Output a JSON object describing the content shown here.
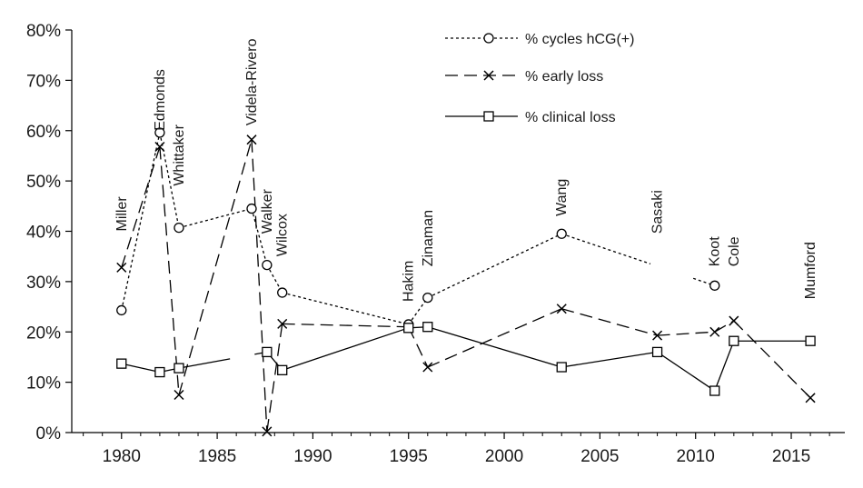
{
  "chart_data": {
    "type": "line",
    "xlim": [
      1977.4,
      2017.8
    ],
    "ylim": [
      0,
      0.8
    ],
    "x_ticks": [
      1980,
      1985,
      1990,
      1995,
      2000,
      2005,
      2010,
      2015
    ],
    "y_ticks": [
      0,
      0.1,
      0.2,
      0.3,
      0.4,
      0.5,
      0.6,
      0.7,
      0.8
    ],
    "y_tick_labels": [
      "0%",
      "10%",
      "20%",
      "30%",
      "40%",
      "50%",
      "60%",
      "70%",
      "80%"
    ],
    "grid": false,
    "legend_position": "top-right",
    "series": [
      {
        "name": "% cycles hCG(+)",
        "style": "dotted",
        "marker": "circle",
        "color": "#000000",
        "points": [
          {
            "x": 1980,
            "y": 0.243
          },
          {
            "x": 1982,
            "y": 0.596
          },
          {
            "x": 1983,
            "y": 0.407
          },
          {
            "x": 1986.8,
            "y": 0.445
          },
          {
            "x": 1987.6,
            "y": 0.333
          },
          {
            "x": 1988.4,
            "y": 0.278
          },
          {
            "x": 1995,
            "y": 0.215
          },
          {
            "x": 1996,
            "y": 0.268
          },
          {
            "x": 2003,
            "y": 0.395
          },
          {
            "x": 2011,
            "y": 0.292
          }
        ],
        "gaps": [
          [
            2003,
            2011
          ]
        ]
      },
      {
        "name": "% early loss",
        "style": "dashed",
        "marker": "x",
        "color": "#000000",
        "points": [
          {
            "x": 1980,
            "y": 0.328
          },
          {
            "x": 1982,
            "y": 0.568
          },
          {
            "x": 1983,
            "y": 0.075
          },
          {
            "x": 1986.8,
            "y": 0.582
          },
          {
            "x": 1987.6,
            "y": 0.002
          },
          {
            "x": 1988.4,
            "y": 0.216
          },
          {
            "x": 1995,
            "y": 0.21
          },
          {
            "x": 1996,
            "y": 0.13
          },
          {
            "x": 2003,
            "y": 0.246
          },
          {
            "x": 2008,
            "y": 0.193
          },
          {
            "x": 2011,
            "y": 0.2
          },
          {
            "x": 2012,
            "y": 0.222
          },
          {
            "x": 2016,
            "y": 0.069
          }
        ]
      },
      {
        "name": "% clinical loss",
        "style": "solid",
        "marker": "square",
        "color": "#000000",
        "points": [
          {
            "x": 1980,
            "y": 0.137
          },
          {
            "x": 1982,
            "y": 0.12
          },
          {
            "x": 1983,
            "y": 0.128
          },
          {
            "x": 1987.6,
            "y": 0.16
          },
          {
            "x": 1988.4,
            "y": 0.124
          },
          {
            "x": 1995,
            "y": 0.208
          },
          {
            "x": 1996,
            "y": 0.21
          },
          {
            "x": 2003,
            "y": 0.13
          },
          {
            "x": 2008,
            "y": 0.16
          },
          {
            "x": 2011,
            "y": 0.083
          },
          {
            "x": 2012,
            "y": 0.182
          },
          {
            "x": 2016,
            "y": 0.182
          }
        ],
        "gaps": [
          [
            1983,
            1987.6
          ]
        ]
      }
    ],
    "annotations": [
      {
        "text": "Miller",
        "x": 1980,
        "y": 0.4
      },
      {
        "text": "Edmonds",
        "x": 1982,
        "y": 0.6
      },
      {
        "text": "Whittaker",
        "x": 1983,
        "y": 0.49
      },
      {
        "text": "Videla-Rivero",
        "x": 1986.8,
        "y": 0.61
      },
      {
        "text": "Walker",
        "x": 1987.6,
        "y": 0.395
      },
      {
        "text": "Wilcox",
        "x": 1988.4,
        "y": 0.35
      },
      {
        "text": "Hakim",
        "x": 1995,
        "y": 0.26
      },
      {
        "text": "Zinaman",
        "x": 1996,
        "y": 0.33
      },
      {
        "text": "Wang",
        "x": 2003,
        "y": 0.43
      },
      {
        "text": "Sasaki",
        "x": 2008,
        "y": 0.395
      },
      {
        "text": "Koot",
        "x": 2011,
        "y": 0.33
      },
      {
        "text": "Cole",
        "x": 2012,
        "y": 0.33
      },
      {
        "text": "Mumford",
        "x": 2016,
        "y": 0.265
      }
    ]
  }
}
